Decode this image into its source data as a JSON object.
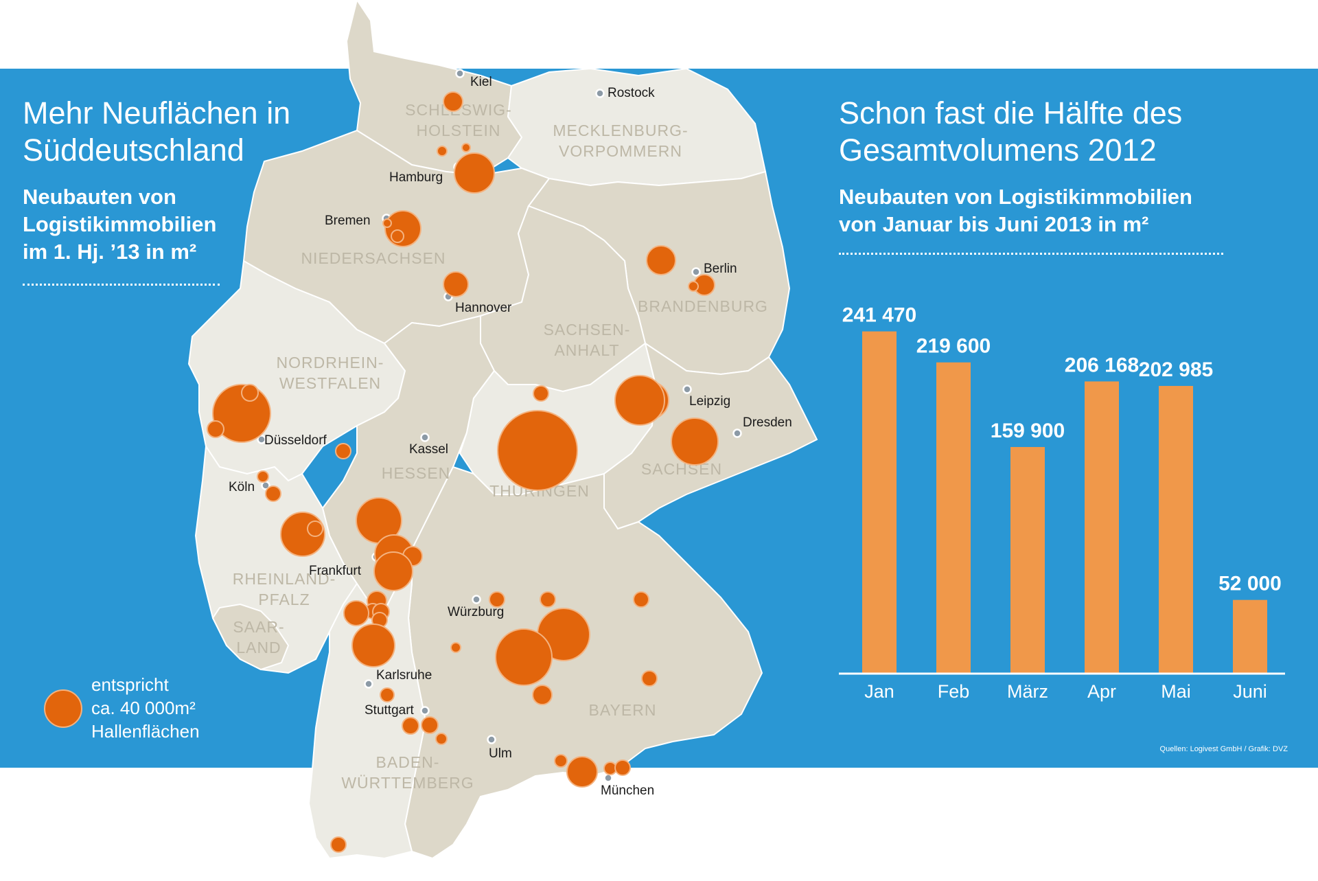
{
  "left_panel": {
    "title_line1": "Mehr Neuflächen in",
    "title_line2": "Süddeutschland",
    "subtitle_line1": "Neubauten von",
    "subtitle_line2": "Logistikimmobilien",
    "subtitle_line3": "im 1. Hj. ’13 in m²"
  },
  "right_panel": {
    "title_line1": "Schon fast die Hälfte des",
    "title_line2": "Gesamtvolumens 2012",
    "subtitle_line1": "Neubauten von Logistikimmobilien",
    "subtitle_line2": "von Januar bis Juni 2013 in m²"
  },
  "legend": {
    "line1": "entspricht",
    "line2": "ca. 40 000m²",
    "line3": "Hallenflächen"
  },
  "source": "Quellen: Logivest GmbH / Grafik: DVZ",
  "colors": {
    "band": "#2a97d4",
    "map_land": "#ddd8c9",
    "map_land_light": "#ecebe4",
    "map_border": "#ffffff",
    "bubble": "#e2650c",
    "bar": "#f0984a",
    "state_label": "#bdb7a6"
  },
  "map": {
    "states": [
      {
        "id": "sh",
        "lines": [
          "SCHLESWIG-",
          "HOLSTEIN"
        ]
      },
      {
        "id": "mv",
        "lines": [
          "MECKLENBURG-",
          "VORPOMMERN"
        ]
      },
      {
        "id": "ni",
        "lines": [
          "NIEDERSACHSEN"
        ]
      },
      {
        "id": "bb",
        "lines": [
          "BRANDENBURG"
        ]
      },
      {
        "id": "st",
        "lines": [
          "SACHSEN-",
          "ANHALT"
        ]
      },
      {
        "id": "nw",
        "lines": [
          "NORDRHEIN-",
          "WESTFALEN"
        ]
      },
      {
        "id": "he",
        "lines": [
          "HESSEN"
        ]
      },
      {
        "id": "th",
        "lines": [
          "THÜRINGEN"
        ]
      },
      {
        "id": "sn",
        "lines": [
          "SACHSEN"
        ]
      },
      {
        "id": "rp",
        "lines": [
          "RHEINLAND-",
          "PFALZ"
        ]
      },
      {
        "id": "sl",
        "lines": [
          "SAAR-",
          "LAND"
        ]
      },
      {
        "id": "by",
        "lines": [
          "BAYERN"
        ]
      },
      {
        "id": "bw",
        "lines": [
          "BADEN-",
          "WÜRTTEMBERG"
        ]
      }
    ],
    "cities": [
      "Kiel",
      "Rostock",
      "Hamburg",
      "Bremen",
      "Berlin",
      "Hannover",
      "Leipzig",
      "Dresden",
      "Düsseldorf",
      "Kassel",
      "Köln",
      "Frankfurt",
      "Würzburg",
      "Karlsruhe",
      "Stuttgart",
      "Ulm",
      "München"
    ]
  },
  "chart_data": {
    "type": "bar",
    "title": "Schon fast die Hälfte des Gesamtvolumens 2012",
    "subtitle": "Neubauten von Logistikimmobilien von Januar bis Juni 2013 in m²",
    "categories": [
      "Jan",
      "Feb",
      "März",
      "Apr",
      "Mai",
      "Juni"
    ],
    "values": [
      241470,
      219600,
      159900,
      206168,
      202985,
      52000
    ],
    "value_labels": [
      "241 470",
      "219 600",
      "159 900",
      "206 168",
      "202 985",
      "52 000"
    ],
    "ylim": [
      0,
      250000
    ],
    "grid": false,
    "legend": "none"
  }
}
